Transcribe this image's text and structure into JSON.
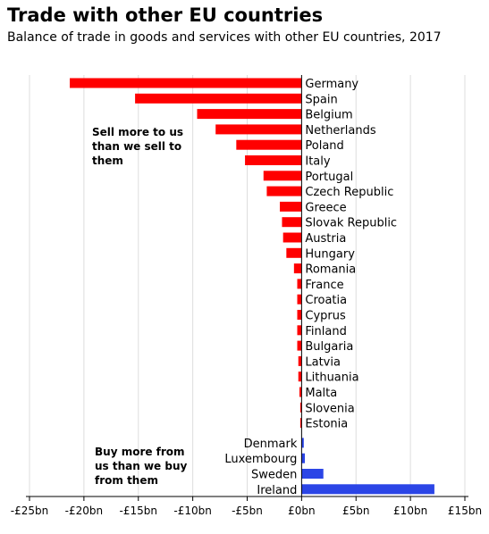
{
  "title": "Trade with other EU countries",
  "subtitle": "Balance of trade in goods and services with other EU countries, 2017",
  "annotations": {
    "surplus_note": "Sell more to us than we sell to them",
    "deficit_note": "Buy more from us than we buy from them"
  },
  "colors": {
    "negative": "#ff0000",
    "positive": "#2b45e6",
    "grid": "#dddddd",
    "axis": "#000000"
  },
  "chart_data": {
    "type": "bar",
    "orientation": "horizontal",
    "categories": [
      "Germany",
      "Spain",
      "Belgium",
      "Netherlands",
      "Poland",
      "Italy",
      "Portugal",
      "Czech Republic",
      "Greece",
      "Slovak Republic",
      "Austria",
      "Hungary",
      "Romania",
      "France",
      "Croatia",
      "Cyprus",
      "Finland",
      "Bulgaria",
      "Latvia",
      "Lithuania",
      "Malta",
      "Slovenia",
      "Estonia",
      "Denmark",
      "Luxembourg",
      "Sweden",
      "Ireland"
    ],
    "values": [
      -21.3,
      -15.3,
      -9.6,
      -7.9,
      -6.0,
      -5.2,
      -3.5,
      -3.2,
      -2.0,
      -1.8,
      -1.7,
      -1.4,
      -0.7,
      -0.4,
      -0.4,
      -0.4,
      -0.4,
      -0.4,
      -0.3,
      -0.3,
      -0.2,
      -0.1,
      -0.05,
      0.2,
      0.3,
      2.0,
      12.2
    ],
    "xlim": [
      -25,
      15
    ],
    "xticks": [
      -25,
      -20,
      -15,
      -10,
      -5,
      0,
      5,
      10,
      15
    ],
    "xtick_labels": [
      "-£25bn",
      "-£20bn",
      "-£15bn",
      "-£10bn",
      "-£5bn",
      "£0bn",
      "£5bn",
      "£10bn",
      "£15bn"
    ],
    "grid": true,
    "xlabel": "",
    "ylabel": ""
  }
}
